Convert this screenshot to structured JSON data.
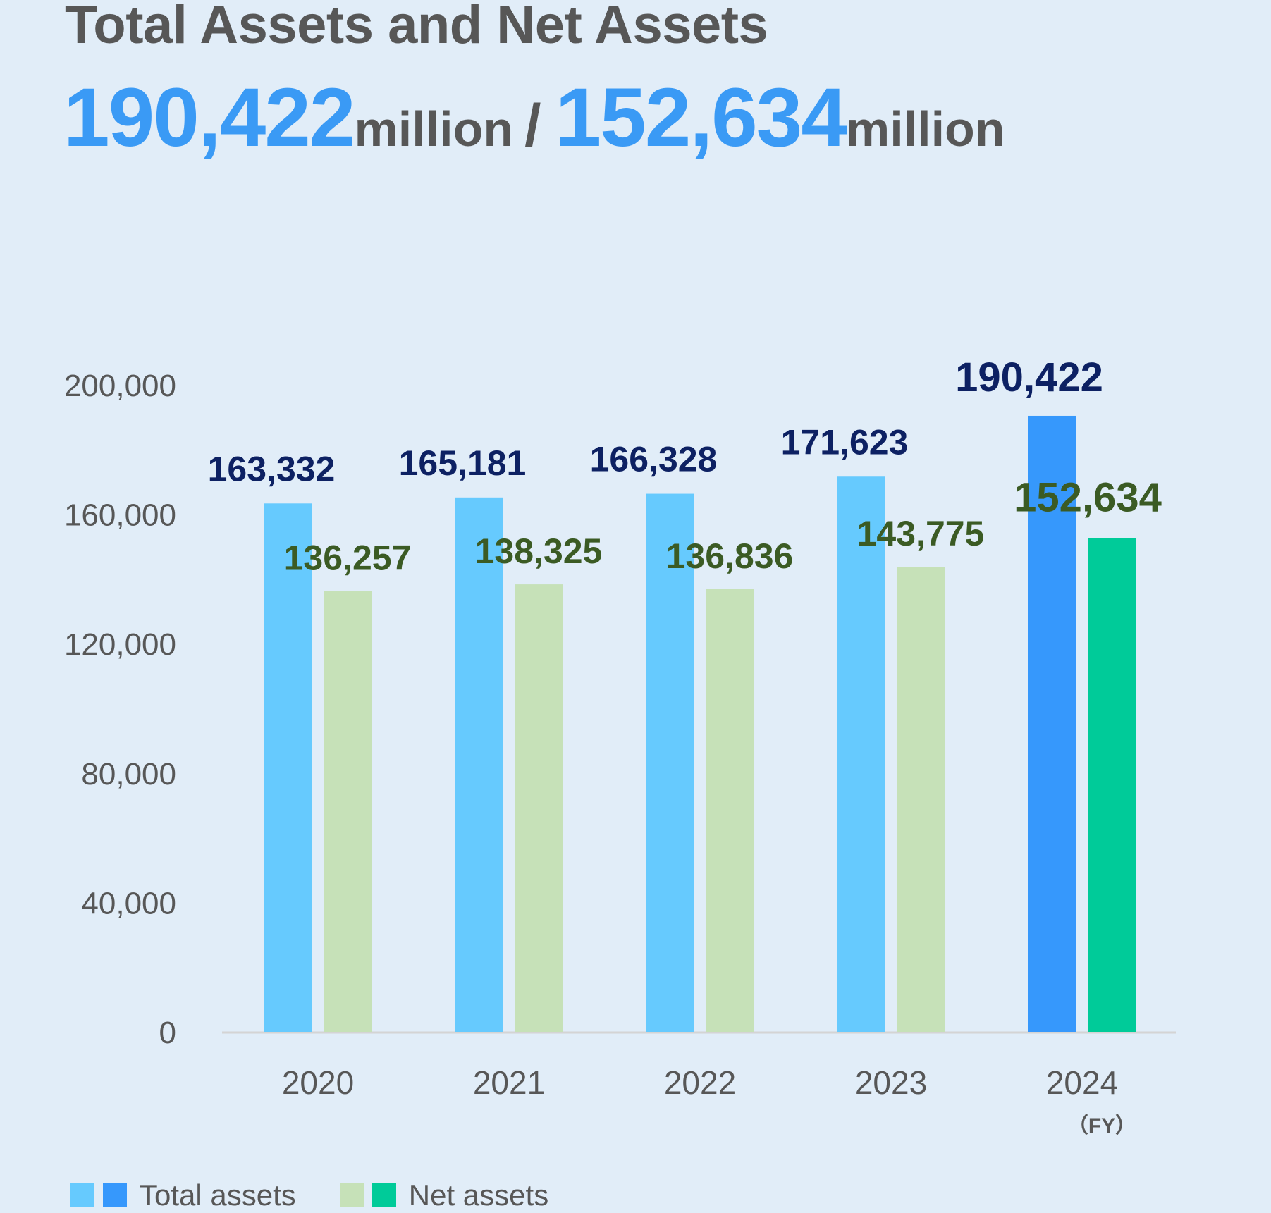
{
  "chart_data": {
    "type": "bar",
    "title": "Total Assets and Net Assets",
    "headline": {
      "total_value": "190,422",
      "total_unit": "million",
      "separator": "/",
      "net_value": "152,634",
      "net_unit": "million"
    },
    "categories": [
      "2020",
      "2021",
      "2022",
      "2023",
      "2024"
    ],
    "x_unit": "（FY）",
    "ylim": [
      0,
      200000
    ],
    "yticks": [
      0,
      40000,
      80000,
      120000,
      160000,
      200000
    ],
    "ytick_labels": [
      "0",
      "40,000",
      "80,000",
      "120,000",
      "160,000",
      "200,000"
    ],
    "series": [
      {
        "name": "Total assets",
        "values": [
          163332,
          165181,
          166328,
          171623,
          190422
        ],
        "labels": [
          "163,332",
          "165,181",
          "166,328",
          "171,623",
          "190,422"
        ],
        "color": "#66cafe",
        "highlight_color": "#3698fc",
        "label_color": "#0d2163"
      },
      {
        "name": "Net assets",
        "values": [
          136257,
          138325,
          136836,
          143775,
          152634
        ],
        "labels": [
          "136,257",
          "138,325",
          "136,836",
          "143,775",
          "152,634"
        ],
        "color": "#c6e1b8",
        "highlight_color": "#00cb99",
        "label_color": "#3b5b24"
      }
    ],
    "highlight_category": "2024",
    "legend_position": "bottom-left",
    "grid": false
  }
}
